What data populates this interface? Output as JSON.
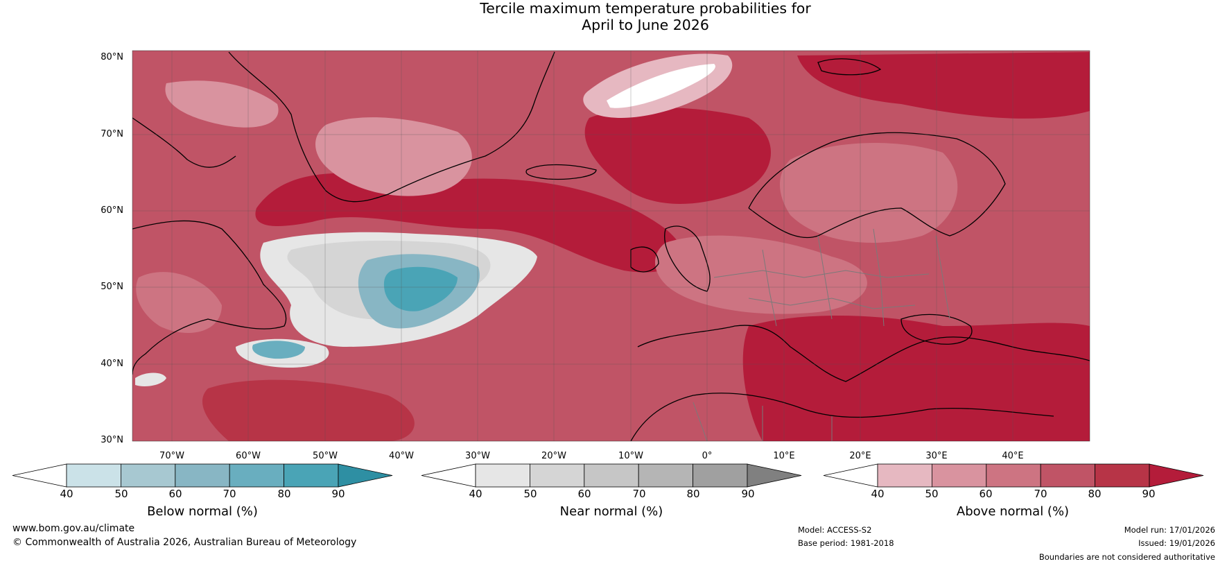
{
  "title": {
    "line1": "Tercile maximum temperature probabilities for",
    "line2": "April to June 2026"
  },
  "map": {
    "lat_labels": [
      "80°N",
      "70°N",
      "60°N",
      "50°N",
      "40°N",
      "30°N"
    ],
    "lon_labels": [
      "70°W",
      "60°W",
      "50°W",
      "40°W",
      "30°W",
      "20°W",
      "10°W",
      "0°",
      "10°E",
      "20°E",
      "30°E",
      "40°E"
    ]
  },
  "legends": {
    "below": {
      "label": "Below normal (%)",
      "ticks": [
        "40",
        "50",
        "60",
        "70",
        "80",
        "90"
      ],
      "colors": [
        "#ffffff",
        "#cbe2e8",
        "#a7c8d1",
        "#88b6c4",
        "#69aebf",
        "#4aa4b6",
        "#2e8fa3"
      ]
    },
    "near": {
      "label": "Near normal (%)",
      "ticks": [
        "40",
        "50",
        "60",
        "70",
        "80",
        "90"
      ],
      "colors": [
        "#ffffff",
        "#e6e6e6",
        "#d5d5d5",
        "#c6c6c6",
        "#b5b5b5",
        "#a0a0a0",
        "#808080"
      ]
    },
    "above": {
      "label": "Above normal (%)",
      "ticks": [
        "40",
        "50",
        "60",
        "70",
        "80",
        "90"
      ],
      "colors": [
        "#ffffff",
        "#e6b8c1",
        "#d9939f",
        "#cd7482",
        "#c05466",
        "#b73447",
        "#b41c3a"
      ]
    }
  },
  "footer": {
    "website": "www.bom.gov.au/climate",
    "copyright": "© Commonwealth of Australia 2026, Australian Bureau of Meteorology",
    "model": "Model: ACCESS-S2",
    "base_period": "Base period: 1981-2018",
    "model_run": "Model run: 17/01/2026",
    "issued": "Issued: 19/01/2026",
    "disclaimer": "Boundaries are not considered authoritative"
  }
}
